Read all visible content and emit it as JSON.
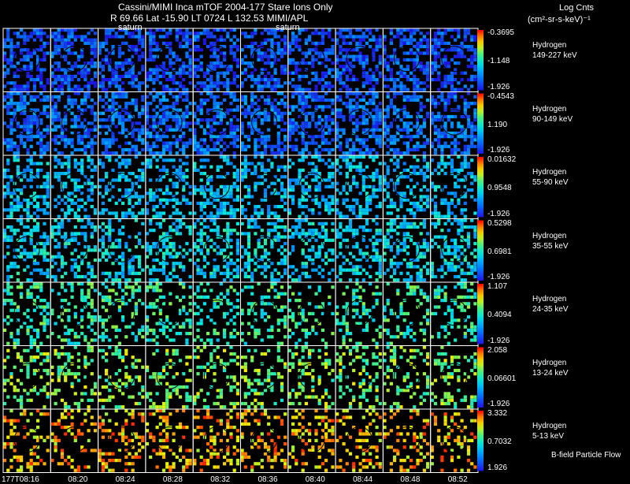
{
  "header": {
    "line1": "Cassini/MIMI Inca mTOF  2004-177   Stare   Ions Only",
    "line2": "R        69.66 Lat -15.90 LT 0724 L         132.53  MIMI/APL",
    "units_line1": "Log Cnts",
    "units_line2": "(cm²-sr-s-keV)⁻¹",
    "saturn_label": "saturn"
  },
  "footer": {
    "flow_label": "B-field Particle Flow"
  },
  "chart_data": {
    "type": "heatmap",
    "title": "Cassini/MIMI Inca mTOF  2004-177   Stare   Ions Only",
    "species": "Hydrogen",
    "times": [
      "177T08:16",
      "08:20",
      "08:24",
      "08:28",
      "08:32",
      "08:36",
      "08:40",
      "08:44",
      "08:48",
      "08:52"
    ],
    "rows": [
      {
        "energy": "149-227 keV",
        "cmax": "-0.3695",
        "cmid": "-1.148",
        "cmin": "-1.926",
        "level": 0.12
      },
      {
        "energy": "90-149 keV",
        "cmax": "-0.4543",
        "cmid": "1.190",
        "cmin": "-1.926",
        "level": 0.18
      },
      {
        "energy": "55-90 keV",
        "cmax": "0.01632",
        "cmid": "0.9548",
        "cmin": "-1.926",
        "level": 0.35
      },
      {
        "energy": "35-55 keV",
        "cmax": "0.5298",
        "cmid": "0.6981",
        "cmin": "-1.926",
        "level": 0.4
      },
      {
        "energy": "24-35 keV",
        "cmax": "1.107",
        "cmid": "0.4094",
        "cmin": "-1.926",
        "level": 0.52
      },
      {
        "energy": "13-24 keV",
        "cmax": "2.058",
        "cmid": "0.06601",
        "cmin": "-1.926",
        "level": 0.62
      },
      {
        "energy": "5-13 keV",
        "cmax": "3.332",
        "cmid": "0.7032",
        "cmin": "1.926",
        "level": 0.82
      }
    ],
    "colorscale": "blue-cyan-green-yellow-red"
  }
}
